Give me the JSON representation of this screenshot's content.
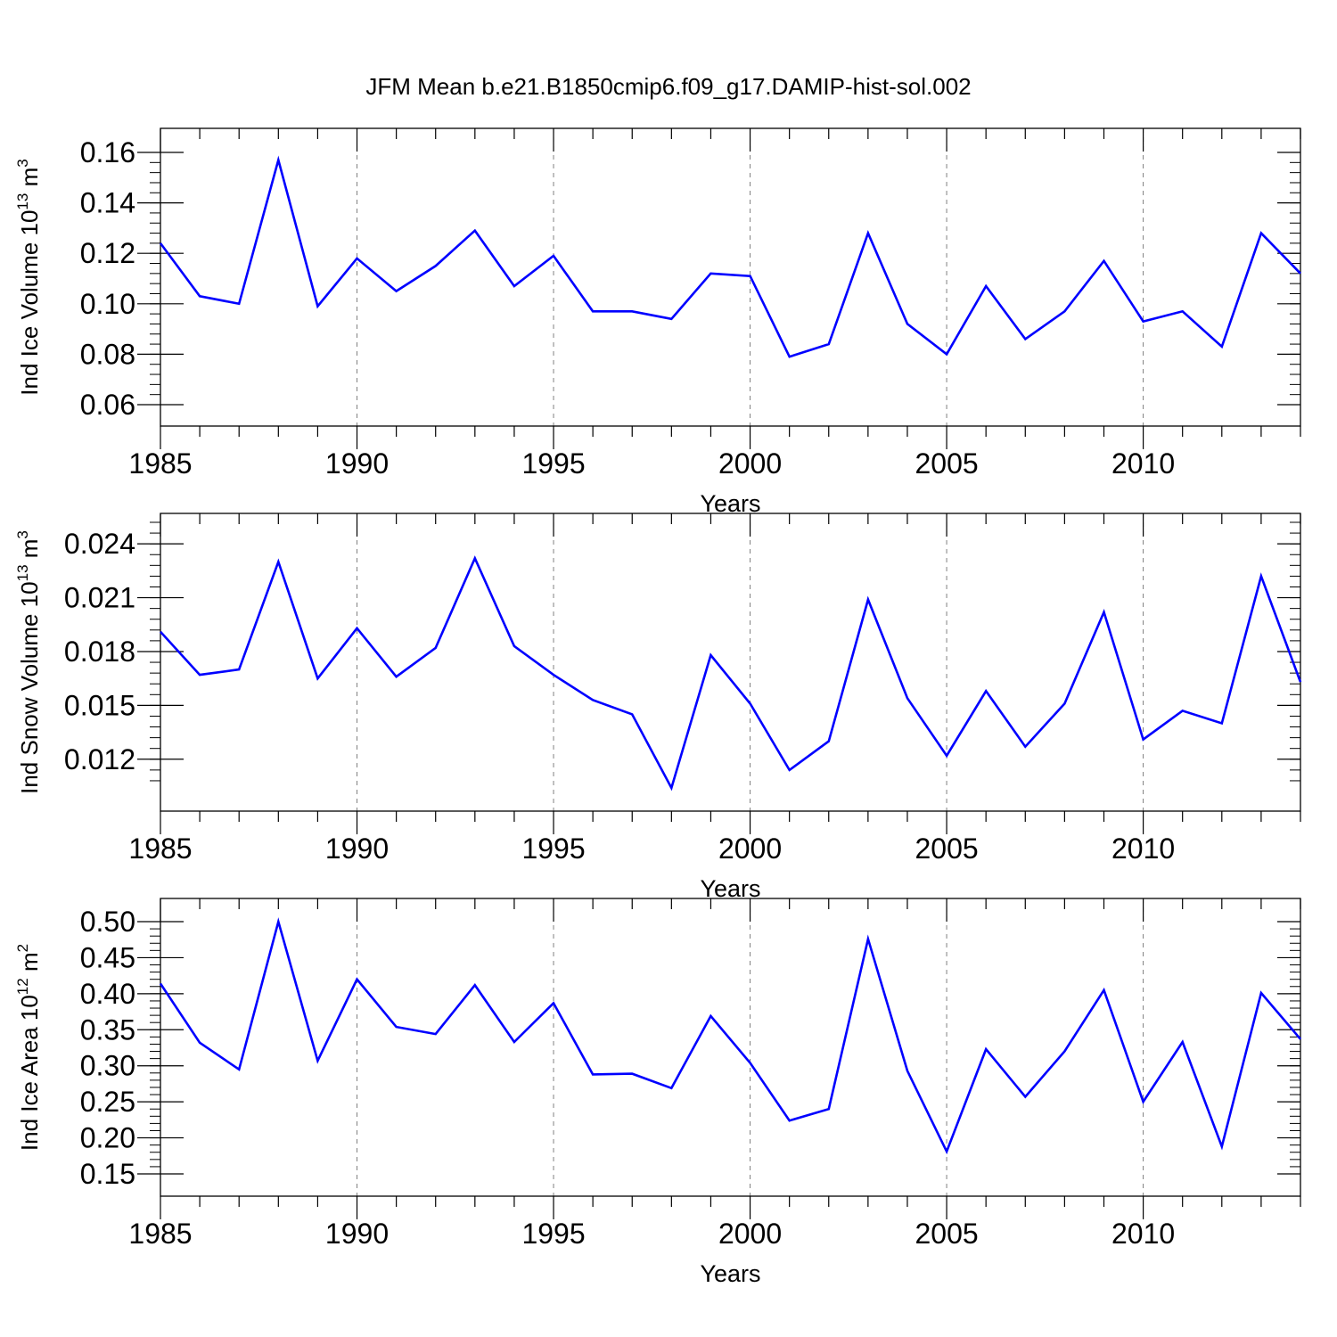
{
  "title": "JFM Mean b.e21.B1850cmip6.f09_g17.DAMIP-hist-sol.002",
  "style": {
    "line_color": "#0000ff",
    "axis_color": "#000000",
    "grid_color": "#808080"
  },
  "chart_data": [
    {
      "type": "line",
      "xlabel": "Years",
      "ylabel_main": "Ind Ice Volume 10",
      "ylabel_sup": "13",
      "ylabel_unit": " m",
      "ylabel_unit_sup": "3",
      "xlim": [
        1985,
        2014
      ],
      "ylim": [
        0.06,
        0.16
      ],
      "yticks": [
        0.06,
        0.08,
        0.1,
        0.12,
        0.14,
        0.16
      ],
      "ytick_labels": [
        "0.06",
        "0.08",
        "0.10",
        "0.12",
        "0.14",
        "0.16"
      ],
      "xticks": [
        1985,
        1990,
        1995,
        2000,
        2005,
        2010
      ],
      "xtick_labels": [
        "1985",
        "1990",
        "1995",
        "2000",
        "2005",
        "2010"
      ],
      "grid_x": [
        1990,
        1995,
        2000,
        2005,
        2010
      ],
      "x": [
        1985,
        1986,
        1987,
        1988,
        1989,
        1990,
        1991,
        1992,
        1993,
        1994,
        1995,
        1996,
        1997,
        1998,
        1999,
        2000,
        2001,
        2002,
        2003,
        2004,
        2005,
        2006,
        2007,
        2008,
        2009,
        2010,
        2011,
        2012,
        2013,
        2014
      ],
      "values": [
        0.124,
        0.103,
        0.1,
        0.157,
        0.099,
        0.118,
        0.105,
        0.115,
        0.129,
        0.107,
        0.119,
        0.097,
        0.097,
        0.094,
        0.112,
        0.111,
        0.079,
        0.084,
        0.128,
        0.092,
        0.08,
        0.107,
        0.086,
        0.097,
        0.117,
        0.093,
        0.097,
        0.083,
        0.128,
        0.112
      ]
    },
    {
      "type": "line",
      "xlabel": "Years",
      "ylabel_main": "Ind Snow Volume 10",
      "ylabel_sup": "13",
      "ylabel_unit": " m",
      "ylabel_unit_sup": "3",
      "xlim": [
        1985,
        2014
      ],
      "ylim": [
        0.0104,
        0.0252
      ],
      "yticks": [
        0.012,
        0.015,
        0.018,
        0.021,
        0.024
      ],
      "ytick_labels": [
        "0.012",
        "0.015",
        "0.018",
        "0.021",
        "0.024"
      ],
      "xticks": [
        1985,
        1990,
        1995,
        2000,
        2005,
        2010
      ],
      "xtick_labels": [
        "1985",
        "1990",
        "1995",
        "2000",
        "2005",
        "2010"
      ],
      "grid_x": [
        1990,
        1995,
        2000,
        2005,
        2010
      ],
      "x": [
        1985,
        1986,
        1987,
        1988,
        1989,
        1990,
        1991,
        1992,
        1993,
        1994,
        1995,
        1996,
        1997,
        1998,
        1999,
        2000,
        2001,
        2002,
        2003,
        2004,
        2005,
        2006,
        2007,
        2008,
        2009,
        2010,
        2011,
        2012,
        2013,
        2014
      ],
      "values": [
        0.0191,
        0.0167,
        0.017,
        0.023,
        0.0165,
        0.0193,
        0.0166,
        0.0182,
        0.0232,
        0.0183,
        0.0167,
        0.0153,
        0.0145,
        0.0104,
        0.0178,
        0.0151,
        0.0114,
        0.013,
        0.0209,
        0.0154,
        0.0122,
        0.0158,
        0.0127,
        0.0151,
        0.0202,
        0.0131,
        0.0147,
        0.014,
        0.0222,
        0.0163
      ]
    },
    {
      "type": "line",
      "xlabel": "Years",
      "ylabel_main": "Ind Ice Area 10",
      "ylabel_sup": "12",
      "ylabel_unit": " m",
      "ylabel_unit_sup": "2",
      "xlim": [
        1985,
        2014
      ],
      "ylim": [
        0.15,
        0.5
      ],
      "yticks": [
        0.15,
        0.2,
        0.25,
        0.3,
        0.35,
        0.4,
        0.45,
        0.5
      ],
      "ytick_labels": [
        "0.15",
        "0.20",
        "0.25",
        "0.30",
        "0.35",
        "0.40",
        "0.45",
        "0.50"
      ],
      "xticks": [
        1985,
        1990,
        1995,
        2000,
        2005,
        2010
      ],
      "xtick_labels": [
        "1985",
        "1990",
        "1995",
        "2000",
        "2005",
        "2010"
      ],
      "grid_x": [
        1990,
        1995,
        2000,
        2005,
        2010
      ],
      "x": [
        1985,
        1986,
        1987,
        1988,
        1989,
        1990,
        1991,
        1992,
        1993,
        1994,
        1995,
        1996,
        1997,
        1998,
        1999,
        2000,
        2001,
        2002,
        2003,
        2004,
        2005,
        2006,
        2007,
        2008,
        2009,
        2010,
        2011,
        2012,
        2013,
        2014
      ],
      "values": [
        0.414,
        0.332,
        0.295,
        0.5,
        0.307,
        0.42,
        0.354,
        0.344,
        0.412,
        0.333,
        0.387,
        0.288,
        0.289,
        0.269,
        0.369,
        0.304,
        0.224,
        0.24,
        0.476,
        0.293,
        0.181,
        0.323,
        0.257,
        0.32,
        0.405,
        0.25,
        0.333,
        0.188,
        0.401,
        0.337
      ]
    }
  ]
}
